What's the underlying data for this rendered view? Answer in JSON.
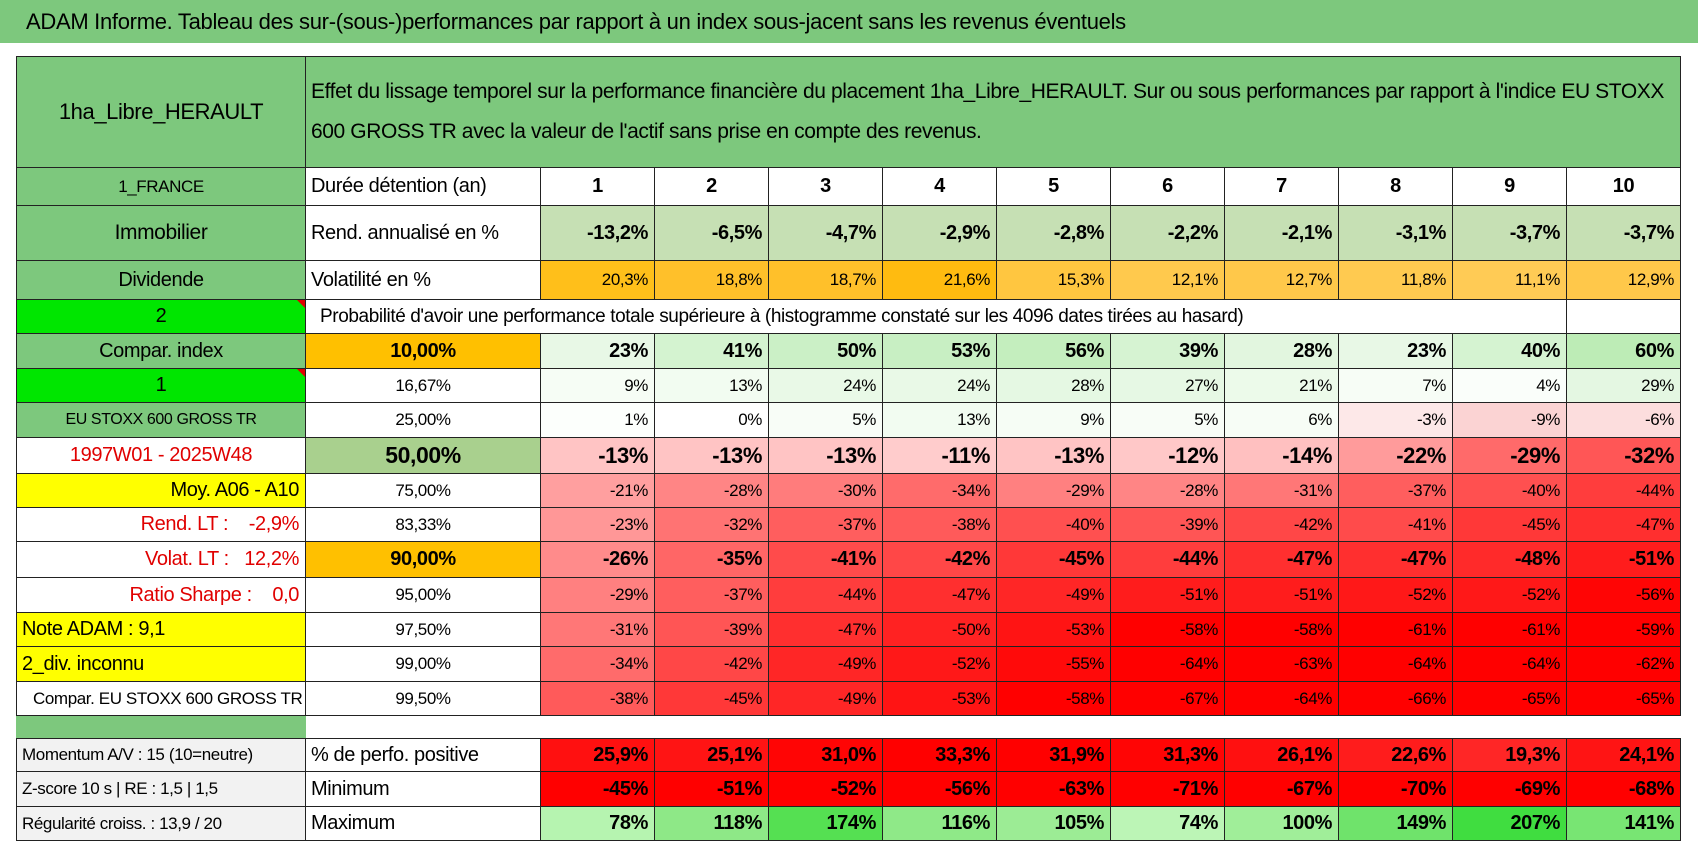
{
  "title": "ADAM Informe. Tableau des sur-(sous-)performances par rapport à un index sous-jacent sans les revenus éventuels",
  "table": {
    "header": {
      "name": "1ha_Libre_HERAULT",
      "description": "Effet du lissage temporel sur la performance financière du placement 1ha_Libre_HERAULT. Sur ou sous performances par rapport à l'indice EU STOXX 600 GROSS TR avec la valeur de l'actif sans prise en compte des revenus."
    },
    "rows": [
      {
        "left": "1_FRANCE",
        "label": "Durée détention (an)",
        "values": [
          "1",
          "2",
          "3",
          "4",
          "5",
          "6",
          "7",
          "8",
          "9",
          "10"
        ]
      },
      {
        "left": "Immobilier",
        "label": "Rend. annualisé en %",
        "values": [
          "-13,2%",
          "-6,5%",
          "-4,7%",
          "-2,9%",
          "-2,8%",
          "-2,2%",
          "-2,1%",
          "-3,1%",
          "-3,7%",
          "-3,7%"
        ],
        "colors": [
          "#c6e0b4",
          "#c6e0b4",
          "#c6e0b4",
          "#c6e0b4",
          "#c6e0b4",
          "#c6e0b4",
          "#c6e0b4",
          "#c6e0b4",
          "#c6e0b4",
          "#c6e0b4"
        ]
      },
      {
        "left": "Dividende",
        "label": "Volatilité en %",
        "values": [
          "20,3%",
          "18,8%",
          "18,7%",
          "21,6%",
          "15,3%",
          "12,1%",
          "12,7%",
          "11,8%",
          "11,1%",
          "12,9%"
        ],
        "colors": [
          "#ffbf1a",
          "#ffc02a",
          "#ffc02a",
          "#ffbb10",
          "#ffc640",
          "#ffc94d",
          "#ffc84a",
          "#ffca50",
          "#ffcb55",
          "#ffc84a"
        ]
      },
      {
        "left": "2",
        "text": "Probabilité d'avoir une performance totale supérieure à (histogramme constaté sur les 4096 dates tirées au hasard)"
      },
      {
        "left": "Compar. index",
        "label": "10,00%",
        "values": [
          "23%",
          "41%",
          "50%",
          "53%",
          "56%",
          "39%",
          "28%",
          "23%",
          "40%",
          "60%"
        ],
        "colors": [
          "#e8f8e6",
          "#d4f3d0",
          "#cbf0c6",
          "#c8efc3",
          "#c4eebe",
          "#d6f3d2",
          "#e2f6df",
          "#e8f8e6",
          "#d5f3d1",
          "#bdecb6"
        ]
      },
      {
        "left": "1",
        "label": "16,67%",
        "values": [
          "9%",
          "13%",
          "24%",
          "24%",
          "28%",
          "27%",
          "21%",
          "7%",
          "4%",
          "29%"
        ],
        "colors": [
          "#f6fdf5",
          "#f2fcf1",
          "#e9f9e7",
          "#e9f9e7",
          "#e5f8e3",
          "#e6f8e4",
          "#ecfaea",
          "#f7fdf6",
          "#fafefa",
          "#e4f7e2"
        ]
      },
      {
        "left": "EU STOXX 600 GROSS TR",
        "label": "25,00%",
        "values": [
          "1%",
          "0%",
          "5%",
          "13%",
          "9%",
          "5%",
          "6%",
          "-3%",
          "-9%",
          "-6%"
        ],
        "colors": [
          "#fcfffc",
          "#ffffff",
          "#f8fdf7",
          "#f2fcf1",
          "#f6fdf5",
          "#f8fdf7",
          "#f7fdf6",
          "#fde8e8",
          "#fbd3d3",
          "#fcdddd"
        ]
      },
      {
        "left": "1997W01 - 2025W48",
        "label": "50,00%",
        "values": [
          "-13%",
          "-13%",
          "-13%",
          "-11%",
          "-13%",
          "-12%",
          "-14%",
          "-22%",
          "-29%",
          "-32%"
        ],
        "colors": [
          "#ffc4c4",
          "#ffc4c4",
          "#ffc4c4",
          "#ffcccc",
          "#ffc4c4",
          "#ffc8c8",
          "#ffc0c0",
          "#ff9b9b",
          "#ff6a6a",
          "#ff5656"
        ]
      },
      {
        "left": "Moy. A06 - A10",
        "label": "75,00%",
        "values": [
          "-21%",
          "-28%",
          "-30%",
          "-34%",
          "-29%",
          "-28%",
          "-31%",
          "-37%",
          "-40%",
          "-44%"
        ],
        "colors": [
          "#ff9f9f",
          "#ff8585",
          "#ff7c7c",
          "#ff6b6b",
          "#ff8080",
          "#ff8585",
          "#ff7777",
          "#ff5e5e",
          "#ff5050",
          "#ff3d3d"
        ]
      },
      {
        "left": "Rend. LT :    -2,9%",
        "label": "83,33%",
        "values": [
          "-23%",
          "-32%",
          "-37%",
          "-38%",
          "-40%",
          "-39%",
          "-42%",
          "-41%",
          "-45%",
          "-47%"
        ],
        "colors": [
          "#ff9797",
          "#ff7373",
          "#ff5e5e",
          "#ff5a5a",
          "#ff5050",
          "#ff5555",
          "#ff4747",
          "#ff4b4b",
          "#ff3838",
          "#ff2f2f"
        ]
      },
      {
        "left": "Volat. LT :   12,2%",
        "label": "90,00%",
        "values": [
          "-26%",
          "-35%",
          "-41%",
          "-42%",
          "-45%",
          "-44%",
          "-47%",
          "-47%",
          "-48%",
          "-51%"
        ],
        "colors": [
          "#ff8b8b",
          "#ff6666",
          "#ff4b4b",
          "#ff4747",
          "#ff3838",
          "#ff3d3d",
          "#ff2f2f",
          "#ff2f2f",
          "#ff2a2a",
          "#ff1c1c"
        ]
      },
      {
        "left": "Ratio Sharpe :    0,0",
        "label": "95,00%",
        "values": [
          "-29%",
          "-37%",
          "-44%",
          "-47%",
          "-49%",
          "-51%",
          "-51%",
          "-52%",
          "-52%",
          "-56%"
        ],
        "colors": [
          "#ff8080",
          "#ff5e5e",
          "#ff3d3d",
          "#ff2f2f",
          "#ff2626",
          "#ff1c1c",
          "#ff1c1c",
          "#ff1818",
          "#ff1818",
          "#ff0505"
        ]
      },
      {
        "left": "Note ADAM : 9,1",
        "label": "97,50%",
        "values": [
          "-31%",
          "-39%",
          "-47%",
          "-50%",
          "-53%",
          "-58%",
          "-58%",
          "-61%",
          "-61%",
          "-59%"
        ],
        "colors": [
          "#ff7777",
          "#ff5555",
          "#ff2f2f",
          "#ff2222",
          "#ff1414",
          "#ff0000",
          "#ff0000",
          "#ff0000",
          "#ff0000",
          "#ff0000"
        ]
      },
      {
        "left": "2_div. inconnu",
        "label": "99,00%",
        "values": [
          "-34%",
          "-42%",
          "-49%",
          "-52%",
          "-55%",
          "-64%",
          "-63%",
          "-64%",
          "-64%",
          "-62%"
        ],
        "colors": [
          "#ff6b6b",
          "#ff4747",
          "#ff2626",
          "#ff1818",
          "#ff0a0a",
          "#ff0000",
          "#ff0000",
          "#ff0000",
          "#ff0000",
          "#ff0000"
        ]
      },
      {
        "left": "Compar. EU STOXX 600 GROSS TR",
        "label": "99,50%",
        "values": [
          "-38%",
          "-45%",
          "-49%",
          "-53%",
          "-58%",
          "-67%",
          "-64%",
          "-66%",
          "-65%",
          "-65%"
        ],
        "colors": [
          "#ff5a5a",
          "#ff3838",
          "#ff2626",
          "#ff1414",
          "#ff0000",
          "#ff0000",
          "#ff0000",
          "#ff0000",
          "#ff0000",
          "#ff0000"
        ]
      }
    ],
    "summary_rows": [
      {
        "left": "Momentum A/V : 15 (10=neutre)",
        "label": "% de perfo. positive",
        "values": [
          "25,9%",
          "25,1%",
          "31,0%",
          "33,3%",
          "31,9%",
          "31,3%",
          "26,1%",
          "22,6%",
          "19,3%",
          "24,1%"
        ],
        "colors": [
          "#ff1010",
          "#ff1414",
          "#ff0505",
          "#ff0000",
          "#ff0000",
          "#ff0505",
          "#ff1010",
          "#ff1c1c",
          "#ff2626",
          "#ff1414"
        ]
      },
      {
        "left": "Z-score 10 s | RE : 1,5 | 1,5",
        "label": "Minimum",
        "values": [
          "-45%",
          "-51%",
          "-52%",
          "-56%",
          "-63%",
          "-71%",
          "-67%",
          "-70%",
          "-69%",
          "-68%"
        ],
        "colors": [
          "#ff0000",
          "#ff0000",
          "#ff0000",
          "#ff0000",
          "#ff0000",
          "#ff0000",
          "#ff0000",
          "#ff0000",
          "#ff0000",
          "#ff0000"
        ]
      },
      {
        "left": "Régularité croiss. : 13,9 / 20",
        "label": "Maximum",
        "values": [
          "78%",
          "118%",
          "174%",
          "116%",
          "105%",
          "74%",
          "100%",
          "149%",
          "207%",
          "141%"
        ],
        "colors": [
          "#b6f4b0",
          "#8ee887",
          "#55e052",
          "#8fe988",
          "#9cec95",
          "#bcf5b6",
          "#a0ee99",
          "#6fe36b",
          "#40dd40",
          "#78e573"
        ]
      }
    ]
  }
}
